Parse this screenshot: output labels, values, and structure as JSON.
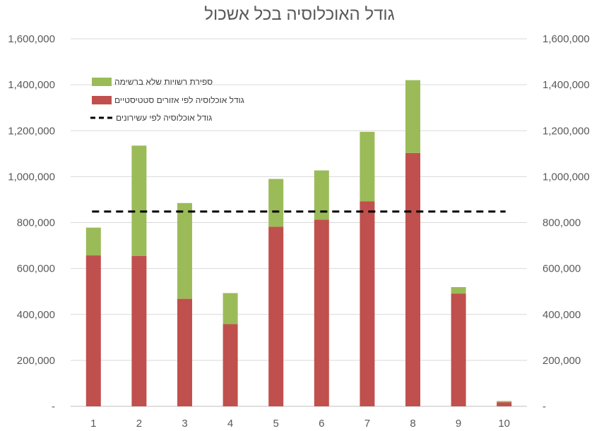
{
  "chart_data": {
    "type": "bar",
    "stacked": true,
    "title": "גודל האוכלוסיה בכל אשכול",
    "categories": [
      "1",
      "2",
      "3",
      "4",
      "5",
      "6",
      "7",
      "8",
      "9",
      "10"
    ],
    "series": [
      {
        "name": "גודל אוכלוסיה לפי אזורים סטטיסטיים",
        "color": "#C0504D",
        "values": [
          657000,
          655000,
          468000,
          358000,
          782000,
          813000,
          893000,
          1103000,
          491000,
          18000
        ]
      },
      {
        "name": "ספירת רשויות שלא ברשימה",
        "color": "#9BBB59",
        "values": [
          121000,
          480000,
          417000,
          135000,
          208000,
          214000,
          302000,
          317000,
          28000,
          5000
        ]
      }
    ],
    "reference_line": {
      "name": "גודל אוכלוסיה לפי עשירונים",
      "value": 848000,
      "color": "#000000",
      "style": "dashed"
    },
    "ylim": [
      0,
      1600000
    ],
    "yticks": [
      "-",
      "200,000",
      "400,000",
      "600,000",
      "800,000",
      "1,000,000",
      "1,200,000",
      "1,400,000",
      "1,600,000"
    ],
    "secondary_yticks": [
      "-",
      "200,000",
      "400,000",
      "600,000",
      "800,000",
      "1,000,000",
      "1,200,000",
      "1,400,000",
      "1,600,000"
    ],
    "grid": true,
    "legend_position": "top-left"
  }
}
